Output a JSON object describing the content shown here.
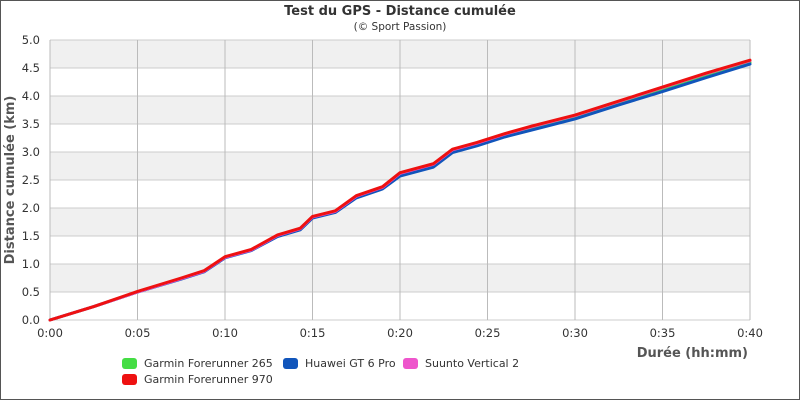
{
  "chart_data": {
    "type": "line",
    "title": "Test du GPS - Distance cumulée",
    "subtitle": "(© Sport Passion)",
    "xlabel": "Durée (hh:mm)",
    "ylabel": "Distance cumulée (km)",
    "xlim": [
      0,
      40
    ],
    "ylim": [
      0,
      5
    ],
    "x_ticks": [
      0,
      5,
      10,
      15,
      20,
      25,
      30,
      35,
      40
    ],
    "x_tick_labels": [
      "0:00",
      "0:05",
      "0:10",
      "0:15",
      "0:20",
      "0:25",
      "0:30",
      "0:35",
      "0:40"
    ],
    "y_ticks": [
      0,
      0.5,
      1,
      1.5,
      2,
      2.5,
      3,
      3.5,
      4,
      4.5,
      5
    ],
    "y_tick_labels": [
      "0.0",
      "0.5",
      "1.0",
      "1.5",
      "2.0",
      "2.5",
      "3.0",
      "3.5",
      "4.0",
      "4.5",
      "5.0"
    ],
    "grid": true,
    "legend_position": "bottom",
    "series": [
      {
        "name": "Garmin Forerunner 265",
        "color": "#44dd44",
        "x": [
          0,
          2.5,
          5,
          7.5,
          8.8,
          10,
          11.5,
          13,
          14.3,
          15,
          16.3,
          17.5,
          19,
          20,
          21.9,
          23,
          24.4,
          26,
          27.5,
          30,
          32.5,
          35,
          37.5,
          40
        ],
        "y": [
          0,
          0.24,
          0.5,
          0.74,
          0.87,
          1.12,
          1.25,
          1.5,
          1.62,
          1.83,
          1.93,
          2.2,
          2.36,
          2.6,
          2.76,
          3.02,
          3.14,
          3.3,
          3.42,
          3.62,
          3.87,
          4.12,
          4.37,
          4.6
        ]
      },
      {
        "name": "Huawei GT 6 Pro",
        "color": "#1155bb",
        "x": [
          0,
          2.5,
          5,
          7.5,
          8.8,
          10,
          11.5,
          13,
          14.3,
          15,
          16.3,
          17.5,
          19,
          20,
          21.9,
          23,
          24.4,
          26,
          27.5,
          30,
          32.5,
          35,
          37.5,
          40
        ],
        "y": [
          0,
          0.24,
          0.5,
          0.73,
          0.86,
          1.11,
          1.24,
          1.49,
          1.61,
          1.82,
          1.92,
          2.18,
          2.34,
          2.57,
          2.73,
          2.99,
          3.11,
          3.27,
          3.39,
          3.59,
          3.84,
          4.08,
          4.33,
          4.57
        ]
      },
      {
        "name": "Suunto Vertical 2",
        "color": "#ee55cc",
        "x": [
          0,
          2.5,
          5,
          7.5,
          8.8,
          10,
          11.5,
          13,
          14.3,
          15,
          16.3,
          17.5,
          19,
          20,
          21.9,
          23,
          24.4,
          26,
          27.5,
          30,
          32.5,
          35,
          37.5,
          40
        ],
        "y": [
          0,
          0.24,
          0.5,
          0.74,
          0.87,
          1.12,
          1.25,
          1.51,
          1.63,
          1.84,
          1.94,
          2.21,
          2.37,
          2.62,
          2.78,
          3.04,
          3.16,
          3.32,
          3.45,
          3.65,
          3.9,
          4.15,
          4.4,
          4.63
        ]
      },
      {
        "name": "Garmin Forerunner 970",
        "color": "#ee1111",
        "x": [
          0,
          2.5,
          5,
          7.5,
          8.8,
          10,
          11.5,
          13,
          14.3,
          15,
          16.3,
          17.5,
          19,
          20,
          21.9,
          23,
          24.4,
          26,
          27.5,
          30,
          32.5,
          35,
          37.5,
          40
        ],
        "y": [
          0,
          0.24,
          0.51,
          0.75,
          0.88,
          1.13,
          1.26,
          1.52,
          1.64,
          1.85,
          1.95,
          2.22,
          2.38,
          2.63,
          2.79,
          3.05,
          3.17,
          3.33,
          3.46,
          3.66,
          3.91,
          4.16,
          4.41,
          4.64
        ]
      }
    ],
    "legend_order": [
      0,
      1,
      2,
      3
    ]
  }
}
